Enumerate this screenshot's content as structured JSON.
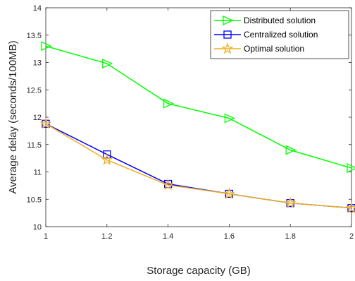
{
  "chart_data": {
    "type": "line",
    "title": "",
    "xlabel": "Storage capacity (GB)",
    "ylabel": "Average delay (seconds/100MB)",
    "x": [
      1,
      1.2,
      1.4,
      1.6,
      1.8,
      2
    ],
    "xlim": [
      1,
      2
    ],
    "ylim": [
      10,
      14
    ],
    "xticks": [
      1,
      1.2,
      1.4,
      1.6,
      1.8,
      2
    ],
    "xtick_labels": [
      "1",
      "1.2",
      "1.4",
      "1.6",
      "1.8",
      "2"
    ],
    "yticks": [
      10,
      10.5,
      11,
      11.5,
      12,
      12.5,
      13,
      13.5,
      14
    ],
    "ytick_labels": [
      "10",
      "10.5",
      "11",
      "11.5",
      "12",
      "12.5",
      "13",
      "13.5",
      "14"
    ],
    "grid": false,
    "legend_position": "top-right",
    "series": [
      {
        "name": "Distributed solution",
        "color": "#00ff00",
        "marker": "triangle-right",
        "values": [
          13.3,
          12.98,
          12.25,
          11.98,
          11.4,
          11.07
        ]
      },
      {
        "name": "Centralized solution",
        "color": "#0000ff",
        "marker": "square",
        "values": [
          11.88,
          11.32,
          10.78,
          10.6,
          10.43,
          10.34
        ]
      },
      {
        "name": "Optimal solution",
        "color": "#edb120",
        "marker": "star",
        "values": [
          11.88,
          11.22,
          10.76,
          10.6,
          10.43,
          10.34
        ]
      }
    ]
  }
}
